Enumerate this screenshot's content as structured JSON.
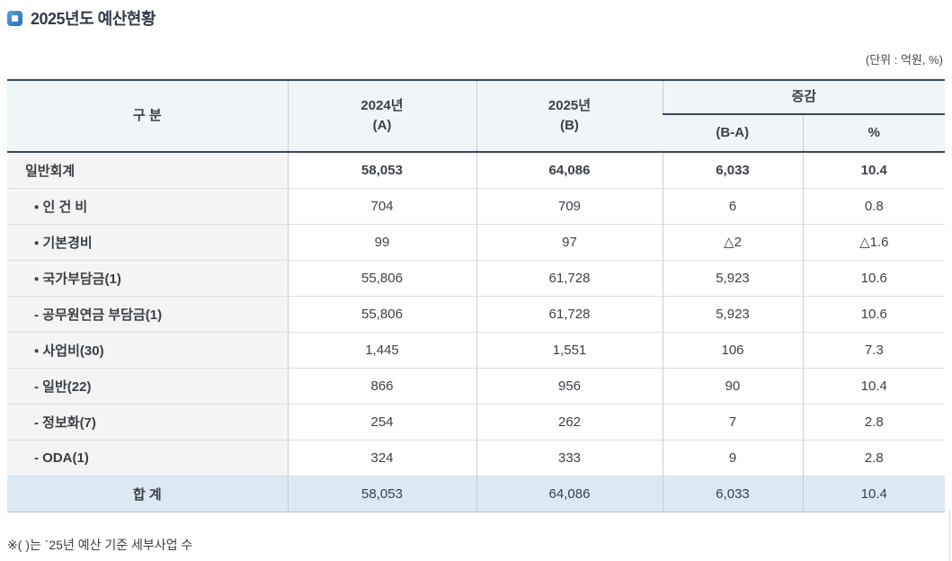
{
  "page": {
    "title": "2025년도 예산현황",
    "unit_note": "(단위 : 억원, %)",
    "footnote": "※( )는 `25년 예산 기준 세부사업 수"
  },
  "colors": {
    "accent_blue": "#2d6db5",
    "header_bg": "#f0f5f8",
    "label_column_bg": "#f4f4f4",
    "total_row_bg": "#dce9f3",
    "dark_border": "#39465a",
    "text": "#3c4148"
  },
  "table": {
    "headers": {
      "col_label": "구 분",
      "col_2024_line1": "2024년",
      "col_2024_line2": "(A)",
      "col_2025_line1": "2025년",
      "col_2025_line2": "(B)",
      "col_change_group": "증감",
      "col_change_amount": "(B-A)",
      "col_change_pct": "%"
    },
    "rows": [
      {
        "label": "일반회계",
        "v2024": "58,053",
        "v2025": "64,086",
        "diff": "6,033",
        "pct": "10.4"
      },
      {
        "label": "▪ 인 건 비",
        "v2024": "704",
        "v2025": "709",
        "diff": "6",
        "pct": "0.8"
      },
      {
        "label": "▪ 기본경비",
        "v2024": "99",
        "v2025": "97",
        "diff": "△2",
        "pct": "△1.6"
      },
      {
        "label": "▪ 국가부담금(1)",
        "v2024": "55,806",
        "v2025": "61,728",
        "diff": "5,923",
        "pct": "10.6"
      },
      {
        "label": "- 공무원연금 부담금(1)",
        "v2024": "55,806",
        "v2025": "61,728",
        "diff": "5,923",
        "pct": "10.6"
      },
      {
        "label": "▪ 사업비(30)",
        "v2024": "1,445",
        "v2025": "1,551",
        "diff": "106",
        "pct": "7.3"
      },
      {
        "label": "- 일반(22)",
        "v2024": "866",
        "v2025": "956",
        "diff": "90",
        "pct": "10.4"
      },
      {
        "label": "- 정보화(7)",
        "v2024": "254",
        "v2025": "262",
        "diff": "7",
        "pct": "2.8"
      },
      {
        "label": "- ODA(1)",
        "v2024": "324",
        "v2025": "333",
        "diff": "9",
        "pct": "2.8"
      }
    ],
    "total": {
      "label": "합 계",
      "v2024": "58,053",
      "v2025": "64,086",
      "diff": "6,033",
      "pct": "10.4"
    }
  }
}
